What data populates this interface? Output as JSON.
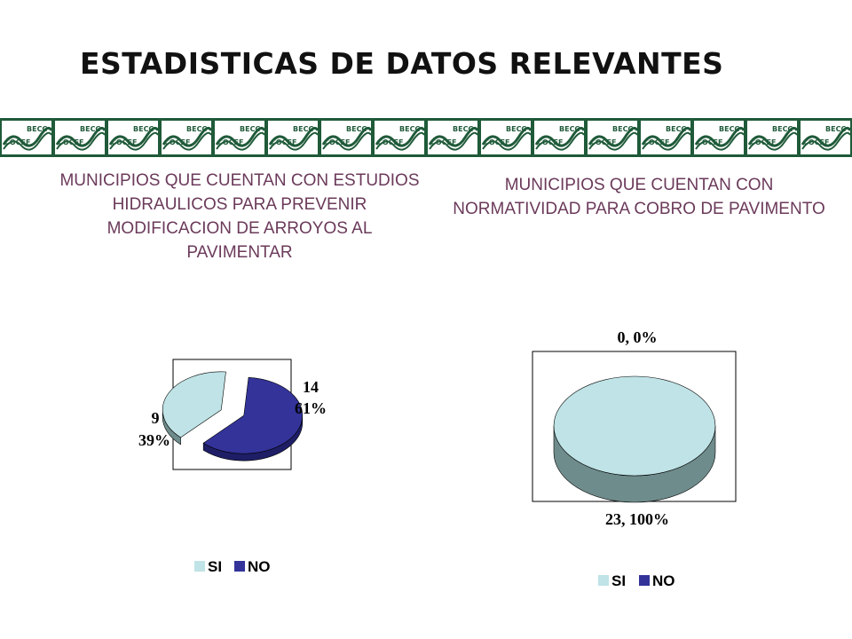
{
  "title": "ESTADISTICAS DE DATOS RELEVANTES",
  "logo": {
    "top_text": "BECC",
    "bottom_text": "COCEF"
  },
  "colors": {
    "si": "#bfe3e6",
    "si_side": "#6f8c8c",
    "no": "#33339a",
    "no_side": "#1e1e66",
    "logo_bg": "#1f5a39"
  },
  "chart_data": [
    {
      "type": "pie",
      "title": "MUNICIPIOS QUE CUENTAN CON ESTUDIOS HIDRAULICOS PARA PREVENIR MODIFICACION DE ARROYOS AL PAVIMENTAR",
      "legend": [
        "SI",
        "NO"
      ],
      "legend_position": "bottom",
      "slices": [
        {
          "label": "SI",
          "value": 9,
          "percent": "39%"
        },
        {
          "label": "NO",
          "value": 14,
          "percent": "61%"
        }
      ]
    },
    {
      "type": "pie",
      "title": "MUNICIPIOS QUE CUENTAN CON NORMATIVIDAD PARA COBRO DE PAVIMENTO",
      "legend": [
        "SI",
        "NO"
      ],
      "legend_position": "bottom",
      "slices": [
        {
          "label": "SI",
          "value": 23,
          "percent": "100%",
          "display": "23, 100%"
        },
        {
          "label": "NO",
          "value": 0,
          "percent": "0%",
          "display": "0, 0%"
        }
      ]
    }
  ]
}
